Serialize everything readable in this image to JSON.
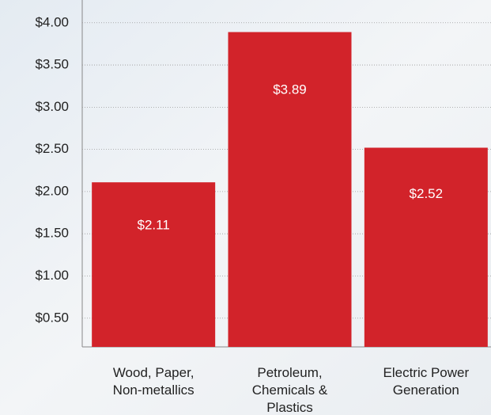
{
  "chart_data": {
    "type": "bar",
    "categories": [
      [
        "Wood, Paper,",
        "Non-metallics"
      ],
      [
        "Petroleum,",
        "Chemicals &",
        "Plastics"
      ],
      [
        "Electric Power",
        "Generation"
      ]
    ],
    "values": [
      2.11,
      3.89,
      2.52
    ],
    "value_labels": [
      "$2.11",
      "$3.89",
      "$2.52"
    ],
    "color": "#d2232a",
    "ylim": [
      0.16,
      4.27
    ],
    "yticks": [
      {
        "value": 0.5,
        "label": "$0.50"
      },
      {
        "value": 1,
        "label": "$1.00"
      },
      {
        "value": 1.5,
        "label": "$1.50"
      },
      {
        "value": 2,
        "label": "$2.00"
      },
      {
        "value": 2.5,
        "label": "$2.50"
      },
      {
        "value": 3,
        "label": "$3.00"
      },
      {
        "value": 3.5,
        "label": "$3.50"
      },
      {
        "value": 4,
        "label": "$4.00"
      }
    ],
    "grid": true
  }
}
